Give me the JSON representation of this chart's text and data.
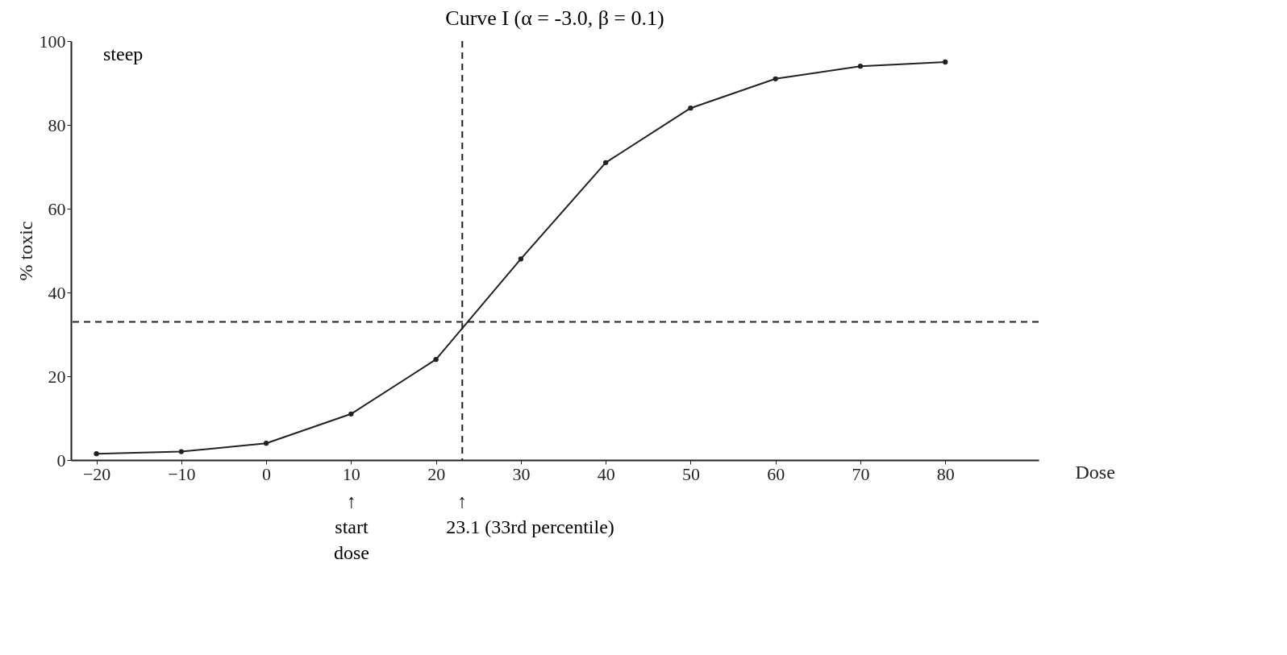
{
  "chart_data": {
    "type": "line",
    "title": "Curve I (α = -3.0, β = 0.1)",
    "xlabel": "Dose",
    "ylabel": "% toxic",
    "x": [
      -20,
      -10,
      0,
      10,
      20,
      30,
      40,
      50,
      60,
      70,
      80
    ],
    "series": [
      {
        "color": "#222222",
        "values": [
          1.5,
          2,
          4,
          11,
          24,
          48,
          71,
          84,
          91,
          94,
          95
        ]
      }
    ],
    "xlim": [
      -23,
      91
    ],
    "ylim": [
      0,
      100
    ],
    "xticks": [
      -20,
      -10,
      0,
      10,
      20,
      30,
      40,
      50,
      60,
      70,
      80
    ],
    "yticks": [
      0,
      20,
      40,
      60,
      80,
      100
    ],
    "ref_lines": [
      {
        "axis": "y",
        "value": 33,
        "line_style": "dashed",
        "label": null
      },
      {
        "axis": "x",
        "value": 23.1,
        "line_style": "dashed",
        "label": "↑ 23.1 (33rd percentile)"
      }
    ],
    "annotations": [
      "steep",
      "↑ start dose"
    ],
    "marker": "circle",
    "line_style": "solid",
    "grid": false
  }
}
